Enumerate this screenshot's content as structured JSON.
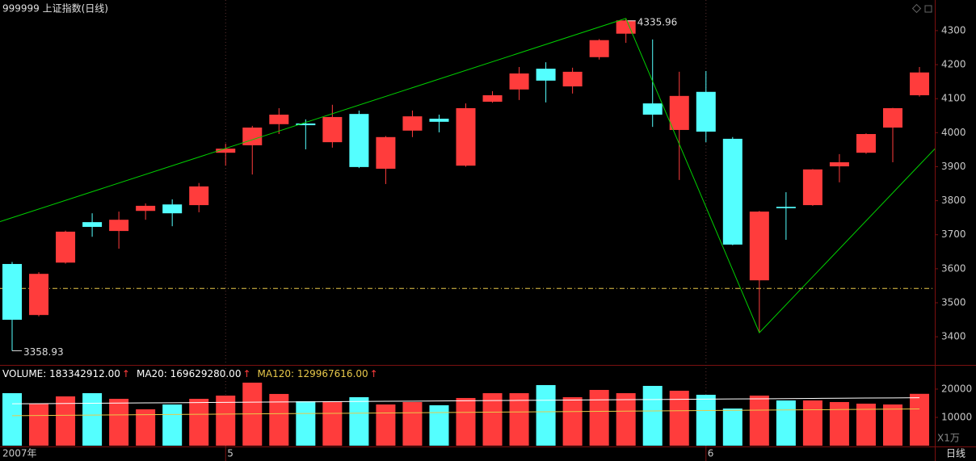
{
  "chart_data": {
    "type": "candlestick",
    "title": "999999 上证指数(日线)",
    "categories": [
      "2007年",
      null,
      null,
      null,
      null,
      null,
      null,
      null,
      "5",
      null,
      null,
      null,
      null,
      null,
      null,
      null,
      null,
      null,
      null,
      null,
      null,
      null,
      null,
      null,
      null,
      null,
      "6",
      null,
      null,
      null,
      null,
      null,
      null,
      null,
      null
    ],
    "open": [
      3614,
      3464,
      3618,
      3737,
      3711,
      3770,
      3789,
      3787,
      3941,
      3963,
      4025,
      4027,
      3972,
      4055,
      3894,
      4006,
      4041,
      3903,
      4091,
      4127,
      4188,
      4136,
      4222,
      4291,
      4086,
      4008,
      4120,
      3982,
      3566,
      3782,
      3787,
      3901,
      3941,
      4015,
      4110
    ],
    "high": [
      3620,
      3590,
      3712,
      3763,
      3768,
      3792,
      3804,
      3852,
      3968,
      4020,
      4072,
      4039,
      4082,
      4065,
      3990,
      4065,
      4053,
      4086,
      4122,
      4193,
      4207,
      4191,
      4275,
      4335.96,
      4274,
      4179,
      4181,
      3987,
      3770,
      3825,
      3893,
      3937,
      3998,
      4073,
      4193
    ],
    "low": [
      3358.93,
      3460,
      3615,
      3694,
      3659,
      3744,
      3725,
      3766,
      3903,
      3877,
      3996,
      3951,
      3956,
      3896,
      3849,
      3987,
      4001,
      3900,
      4088,
      4096,
      4089,
      4115,
      4215,
      4264,
      4017,
      3861,
      3972,
      3669,
      3412,
      3685,
      3785,
      3854,
      3938,
      3913,
      4106
    ],
    "close": [
      3450,
      3585,
      3709,
      3723,
      3744,
      3785,
      3763,
      3842,
      3953,
      4015,
      4053,
      4022,
      4046,
      3899,
      3987,
      4048,
      4032,
      4072,
      4110,
      4174,
      4153,
      4179,
      4272,
      4330,
      4053,
      4108,
      4003,
      3671,
      3768,
      3778,
      3892,
      3913,
      3996,
      4072,
      4177
    ],
    "up_color": "#ff3c3c",
    "down_color": "#54ffff",
    "ylim": [
      3322,
      4390
    ],
    "yticks": [
      3400,
      3500,
      3600,
      3700,
      3800,
      3900,
      4000,
      4100,
      4200,
      4300
    ],
    "hline": {
      "value": 3542,
      "color": "#e8c84a"
    },
    "trendlines": [
      {
        "color": "#00d000",
        "points": [
          [
            0,
            3750
          ],
          [
            23,
            4335.96
          ]
        ]
      },
      {
        "color": "#00d000",
        "points": [
          [
            23,
            4335.96
          ],
          [
            28,
            3412
          ],
          [
            33,
            3823
          ]
        ]
      }
    ],
    "period_label": "日线",
    "volume": {
      "header": [
        {
          "text": "VOLUME: 183342912.00",
          "arrow": "↑",
          "color": "#ffffff"
        },
        {
          "text": "MA20: 169629280.00",
          "arrow": "↑",
          "color": "#ffffff"
        },
        {
          "text": "MA120: 129967616.00",
          "arrow": "↑",
          "color": "#e8c84a"
        }
      ],
      "unit_label": "X1万",
      "values": [
        18570,
        14860,
        17430,
        18570,
        16570,
        12860,
        14570,
        16570,
        17710,
        22290,
        18290,
        15710,
        15710,
        17140,
        14570,
        15430,
        14290,
        16860,
        18570,
        18570,
        21430,
        17140,
        19710,
        18570,
        21140,
        19430,
        18000,
        13140,
        17710,
        16000,
        16000,
        15430,
        14860,
        14570,
        18334
      ],
      "ylim": [
        0,
        27700
      ],
      "yticks": [
        10000,
        20000
      ],
      "series": [
        {
          "name": "MA20",
          "color": "#ffffff",
          "values": [
            14800,
            14860,
            14930,
            14990,
            15050,
            15120,
            15180,
            15250,
            15310,
            15370,
            15440,
            15500,
            15560,
            15630,
            15690,
            15750,
            15820,
            15880,
            15950,
            16010,
            16070,
            16140,
            16200,
            16260,
            16330,
            16390,
            16460,
            16520,
            16580,
            16650,
            16710,
            16770,
            16840,
            16900,
            16963
          ]
        },
        {
          "name": "MA120",
          "color": "#e8c84a",
          "values": [
            10600,
            10670,
            10740,
            10810,
            10880,
            10950,
            11020,
            11090,
            11160,
            11230,
            11300,
            11370,
            11440,
            11510,
            11580,
            11650,
            11720,
            11790,
            11860,
            11930,
            12000,
            12070,
            12140,
            12210,
            12280,
            12350,
            12420,
            12490,
            12560,
            12630,
            12700,
            12770,
            12840,
            12910,
            12997
          ]
        }
      ]
    }
  }
}
